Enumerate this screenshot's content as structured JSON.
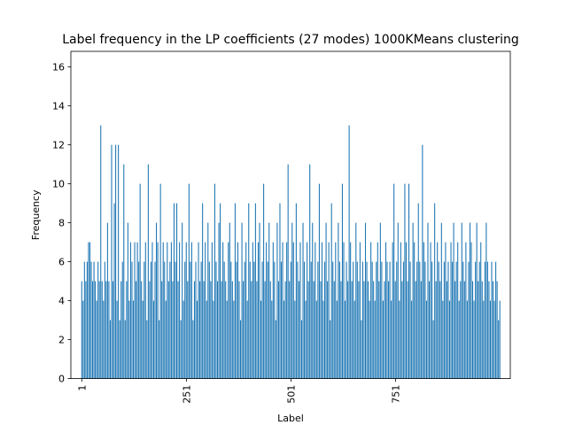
{
  "chart_data": {
    "type": "bar",
    "title": "Label frequency in the LP coefficients (27 modes) 1000KMeans clustering",
    "xlabel": "Label",
    "ylabel": "Frequency",
    "xlim": [
      -25,
      1025
    ],
    "ylim": [
      0,
      16.8
    ],
    "x_ticks": [
      1,
      251,
      501,
      751
    ],
    "x_tick_labels": [
      "1",
      "251",
      "501",
      "751"
    ],
    "y_ticks": [
      0,
      2,
      4,
      6,
      8,
      10,
      12,
      14,
      16
    ],
    "y_tick_labels": [
      "0",
      "2",
      "4",
      "6",
      "8",
      "10",
      "12",
      "14",
      "16"
    ],
    "grid": false,
    "bar_color": "#1f77b4",
    "x_start": 1,
    "values": [
      5,
      4,
      6,
      5,
      6,
      7,
      7,
      6,
      5,
      6,
      5,
      4,
      6,
      5,
      13,
      5,
      4,
      6,
      5,
      8,
      5,
      3,
      12,
      5,
      9,
      12,
      4,
      12,
      3,
      5,
      6,
      11,
      3,
      5,
      8,
      4,
      7,
      6,
      4,
      7,
      5,
      7,
      6,
      10,
      5,
      4,
      6,
      7,
      3,
      11,
      5,
      6,
      7,
      4,
      6,
      8,
      7,
      3,
      10,
      5,
      7,
      6,
      4,
      7,
      5,
      6,
      7,
      5,
      9,
      6,
      9,
      5,
      7,
      3,
      8,
      4,
      6,
      7,
      5,
      10,
      6,
      7,
      3,
      5,
      6,
      4,
      7,
      5,
      6,
      9,
      5,
      7,
      4,
      8,
      6,
      5,
      7,
      4,
      10,
      6,
      5,
      8,
      9,
      5,
      7,
      6,
      5,
      4,
      7,
      8,
      6,
      5,
      4,
      9,
      6,
      7,
      5,
      3,
      8,
      5,
      6,
      7,
      4,
      9,
      6,
      5,
      7,
      6,
      9,
      5,
      7,
      8,
      4,
      6,
      10,
      5,
      7,
      6,
      8,
      5,
      4,
      7,
      6,
      3,
      8,
      5,
      9,
      6,
      7,
      4,
      5,
      7,
      11,
      5,
      6,
      8,
      7,
      4,
      9,
      6,
      5,
      7,
      3,
      8,
      6,
      4,
      7,
      5,
      11,
      6,
      8,
      5,
      7,
      4,
      6,
      10,
      5,
      7,
      4,
      6,
      8,
      5,
      7,
      3,
      9,
      6,
      5,
      7,
      4,
      8,
      6,
      5,
      10,
      7,
      4,
      6,
      5,
      13,
      7,
      5,
      6,
      4,
      8,
      6,
      5,
      7,
      3,
      6,
      5,
      8,
      6,
      5,
      4,
      7,
      6,
      5,
      4,
      6,
      7,
      5,
      8,
      6,
      4,
      5,
      7,
      6,
      5,
      6,
      4,
      7,
      10,
      5,
      6,
      8,
      4,
      7,
      5,
      6,
      10,
      7,
      5,
      10,
      6,
      4,
      8,
      7,
      5,
      6,
      9,
      6,
      5,
      12,
      7,
      6,
      4,
      8,
      5,
      7,
      6,
      3,
      9,
      5,
      7,
      6,
      5,
      8,
      4,
      6,
      7,
      5,
      6,
      4,
      7,
      6,
      8,
      5,
      6,
      7,
      4,
      5,
      8,
      6,
      5,
      7,
      4,
      6,
      8,
      7,
      5,
      4,
      6,
      8,
      5,
      6,
      7,
      5,
      4,
      6,
      8,
      6,
      5,
      4,
      6,
      5,
      4,
      6,
      5,
      3,
      4
    ]
  }
}
